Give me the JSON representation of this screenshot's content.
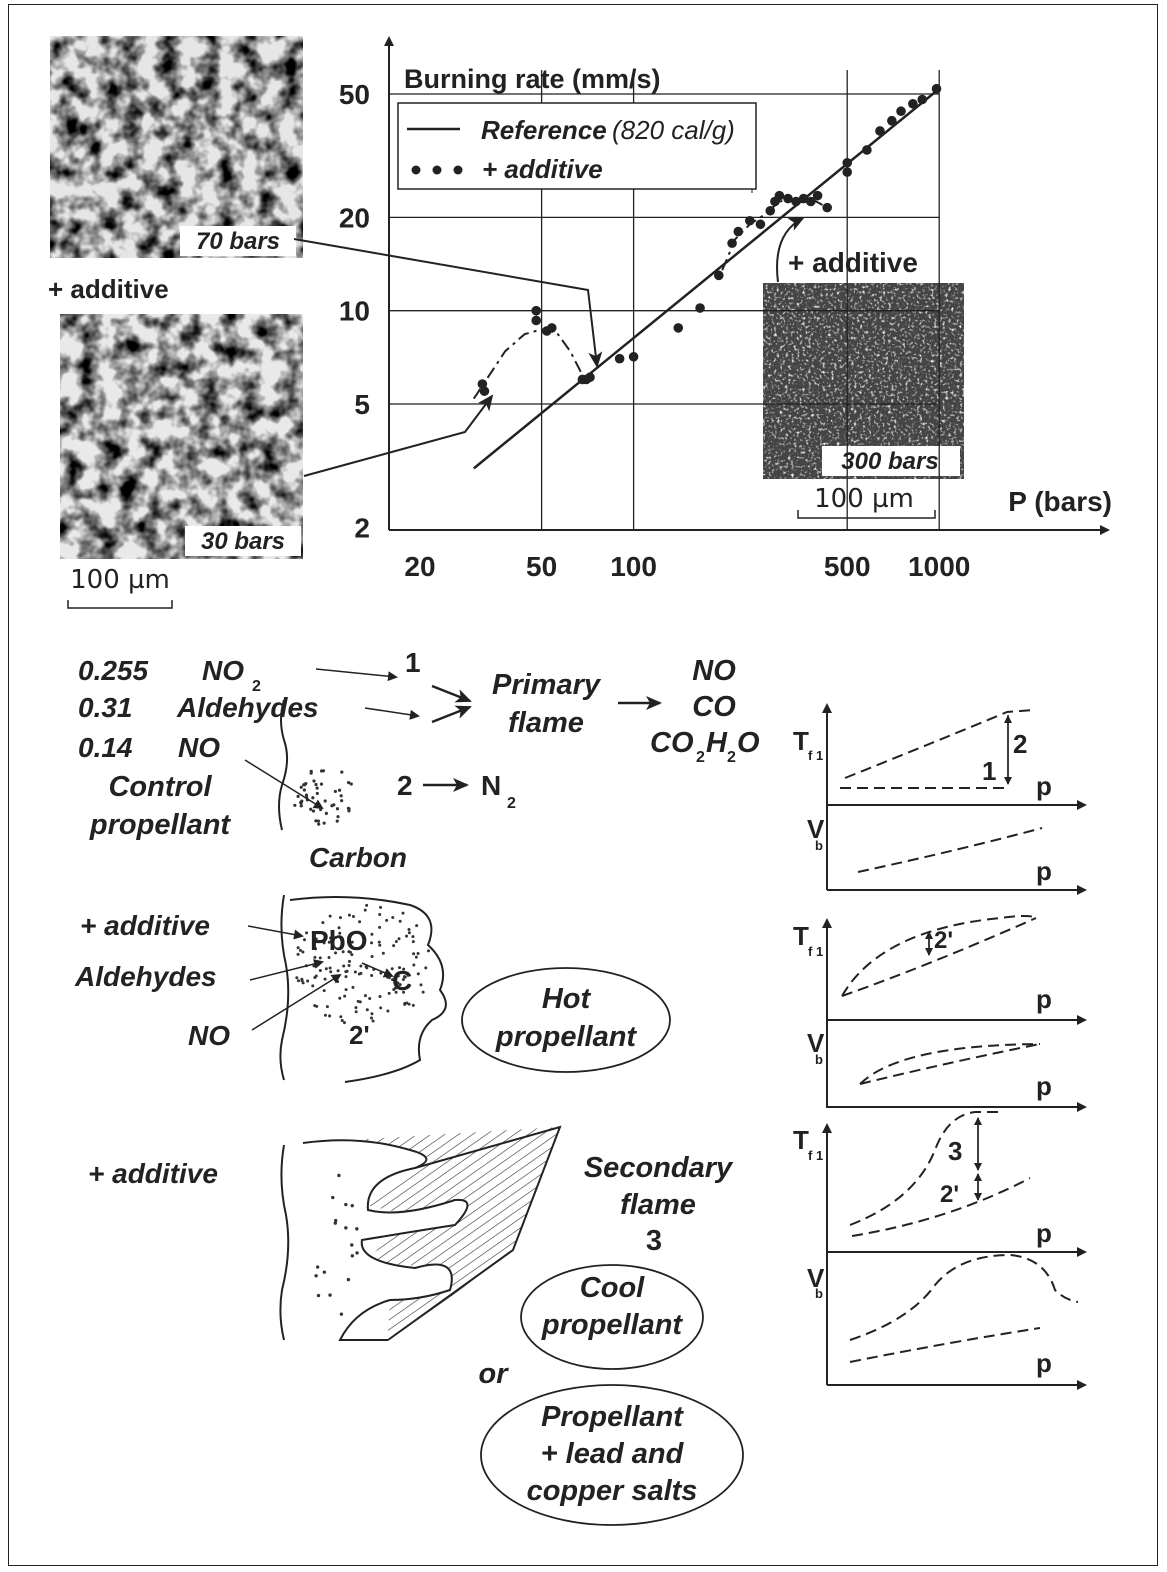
{
  "chart_data": {
    "type": "scatter",
    "xscale": "log",
    "yscale": "log",
    "xlim": [
      15,
      1000
    ],
    "ylim": [
      2,
      60
    ],
    "xticks": [
      "20",
      "50",
      "100",
      "500",
      "1000"
    ],
    "yticks": [
      "2",
      "5",
      "10",
      "20",
      "50"
    ],
    "ylabel": "Burning rate (mm/s)",
    "xlabel": "P (bars)",
    "legend": {
      "reference": "Reference",
      "reference_note": "(820 cal/g)",
      "additive": "+ additive"
    },
    "reference_line": [
      [
        30,
        3.1
      ],
      [
        1000,
        52
      ]
    ],
    "additive_points": [
      [
        32,
        5.8
      ],
      [
        32.5,
        5.5
      ],
      [
        48,
        10
      ],
      [
        48,
        9.3
      ],
      [
        52,
        8.6
      ],
      [
        54,
        8.8
      ],
      [
        68,
        6.0
      ],
      [
        70,
        6.0
      ],
      [
        72,
        6.1
      ],
      [
        90,
        7.0
      ],
      [
        100,
        7.1
      ],
      [
        140,
        8.8
      ],
      [
        165,
        10.2
      ],
      [
        190,
        13
      ],
      [
        210,
        16.5
      ],
      [
        220,
        18
      ],
      [
        240,
        19.5
      ],
      [
        260,
        19.0
      ],
      [
        280,
        21
      ],
      [
        290,
        22.5
      ],
      [
        300,
        23.5
      ],
      [
        320,
        23
      ],
      [
        340,
        22.5
      ],
      [
        360,
        23
      ],
      [
        380,
        22.5
      ],
      [
        400,
        23.5
      ],
      [
        430,
        21.5
      ],
      [
        500,
        28
      ],
      [
        500,
        30
      ],
      [
        580,
        33
      ],
      [
        640,
        38
      ],
      [
        700,
        41
      ],
      [
        750,
        44
      ],
      [
        820,
        46.5
      ],
      [
        880,
        48
      ],
      [
        980,
        52
      ]
    ],
    "additive_curve": [
      [
        30,
        5.2
      ],
      [
        33,
        6.0
      ],
      [
        38,
        7.4
      ],
      [
        44,
        8.4
      ],
      [
        50,
        8.7
      ],
      [
        56,
        8.5
      ],
      [
        62,
        7.4
      ],
      [
        68,
        6.2
      ],
      [
        72,
        6.0
      ],
      null,
      [
        195,
        13.5
      ],
      [
        215,
        17
      ],
      [
        240,
        19
      ],
      [
        270,
        20.5
      ],
      [
        300,
        22.5
      ],
      [
        340,
        23
      ],
      [
        380,
        23
      ],
      [
        430,
        21.5
      ]
    ]
  },
  "micrographs": {
    "m70": {
      "label": "70 bars"
    },
    "m30": {
      "label": "30 bars"
    },
    "m300": {
      "label": "300 bars"
    },
    "scale_left": "100 µm",
    "scale_right": "100 µm",
    "left_additive": "+ additive",
    "right_additive": "+ additive"
  },
  "control": {
    "c1": "0.255",
    "s1": "NO",
    "s1_sub": "2",
    "c2": "0.31",
    "s2": "Aldehydes",
    "c3": "0.14",
    "s3": "NO",
    "label_line1": "Control",
    "label_line2": "propellant",
    "n1": "1",
    "primary_line1": "Primary",
    "primary_line2": "flame",
    "p_no": "NO",
    "p_co": "CO",
    "p_co2": "CO",
    "p_co2_sub": "2",
    "p_h2o": "H",
    "p_h2o_sub": "2",
    "p_o": "O",
    "n2": "2",
    "n2_prod": "N",
    "n2_prod_sub": "2",
    "carbon": "Carbon"
  },
  "hot": {
    "additive": "+ additive",
    "aldehydes": "Aldehydes",
    "no": "NO",
    "pbo": "PbO",
    "c": "C",
    "two_prime": "2'",
    "label_line1": "Hot",
    "label_line2": "propellant"
  },
  "cool": {
    "additive": "+ additive",
    "secondary_line1": "Secondary",
    "secondary_line2": "flame",
    "secondary_num": "3",
    "label_line1": "Cool",
    "label_line2": "propellant",
    "or": "or",
    "alt_line1": "Propellant",
    "alt_line2": "+ lead and",
    "alt_line3": "copper salts"
  },
  "mini": {
    "tf": "T",
    "tf_sub": "f 1",
    "vb": "V",
    "vb_sub": "b",
    "p": "p",
    "g1_mark1": "1",
    "g1_mark2": "2",
    "g2_mark": "2'",
    "g3_mark3": "3",
    "g3_mark2": "2'"
  }
}
